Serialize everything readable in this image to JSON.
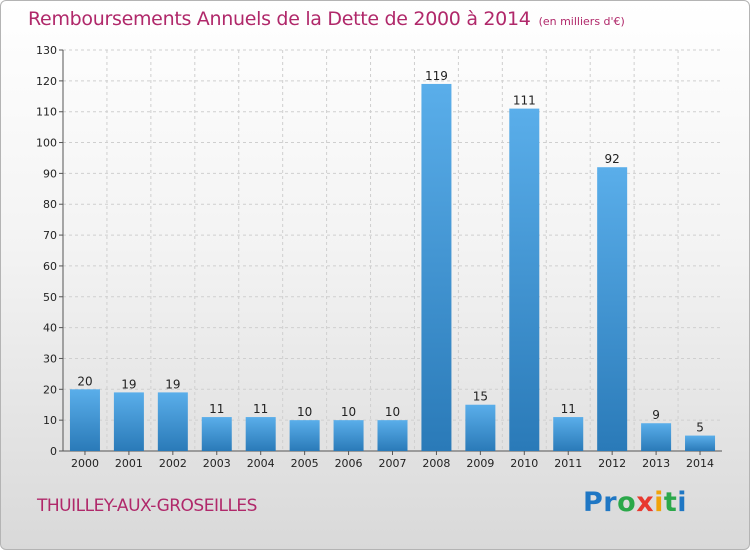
{
  "header": {
    "title": "Remboursements Annuels de la Dette de 2000 à 2014",
    "unit": "(en milliers d'€)"
  },
  "footer": {
    "commune": "THUILLEY-AUX-GROSEILLES",
    "logo": {
      "letters": [
        "P",
        "r",
        "o",
        "x",
        "i",
        "t",
        "i"
      ],
      "colors": [
        "#1f77c4",
        "#1f77c4",
        "#2ba84a",
        "#e8392f",
        "#f0a30a",
        "#2ba84a",
        "#1f77c4"
      ]
    }
  },
  "colors": {
    "title": "#b0286a",
    "bar_light": "#5aaeea",
    "bar_dark": "#2a7ab8",
    "grid": "#cfcfcf"
  },
  "chart_data": {
    "type": "bar",
    "title": "Remboursements Annuels de la Dette de 2000 à 2014",
    "subtitle": "(en milliers d'€)",
    "categories": [
      "2000",
      "2001",
      "2002",
      "2003",
      "2004",
      "2005",
      "2006",
      "2007",
      "2008",
      "2009",
      "2010",
      "2011",
      "2012",
      "2013",
      "2014"
    ],
    "values": [
      20,
      19,
      19,
      11,
      11,
      10,
      10,
      10,
      119,
      15,
      111,
      11,
      92,
      9,
      5
    ],
    "ylim": [
      0,
      130
    ],
    "yticks": [
      0,
      10,
      20,
      30,
      40,
      50,
      60,
      70,
      80,
      90,
      100,
      110,
      120,
      130
    ],
    "grid": true,
    "data_labels": true
  }
}
